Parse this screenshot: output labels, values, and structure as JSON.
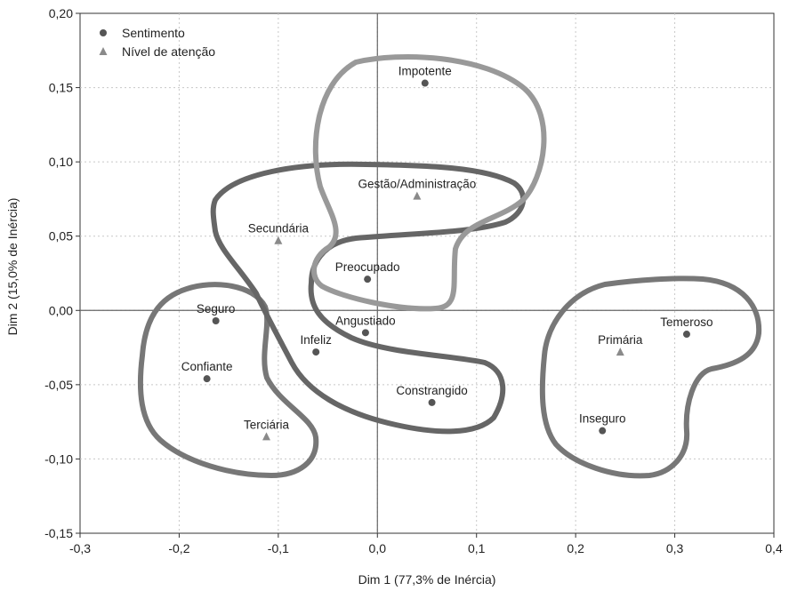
{
  "chart_data": {
    "type": "scatter",
    "xlabel": "Dim 1 (77,3% de Inércia)",
    "ylabel": "Dim 2 (15,0% de Inércia)",
    "xlim": [
      -0.3,
      0.4
    ],
    "ylim": [
      -0.15,
      0.2
    ],
    "x_ticks": [
      "-0,3",
      "-0,2",
      "-0,1",
      "0,0",
      "0,1",
      "0,2",
      "0,3",
      "0,4"
    ],
    "y_ticks": [
      "0,20",
      "0,15",
      "0,10",
      "0,05",
      "0,00",
      "-0,05",
      "-0,10",
      "-0,15"
    ],
    "grid": true,
    "legend_position": "top-left",
    "series": [
      {
        "name": "Sentimento",
        "marker": "circle",
        "color": "#555555",
        "points": [
          {
            "label": "Impotente",
            "x": 0.048,
            "y": 0.153
          },
          {
            "label": "Preocupado",
            "x": -0.01,
            "y": 0.021
          },
          {
            "label": "Seguro",
            "x": -0.163,
            "y": -0.007
          },
          {
            "label": "Angustiado",
            "x": -0.012,
            "y": -0.015
          },
          {
            "label": "Infeliz",
            "x": -0.062,
            "y": -0.028
          },
          {
            "label": "Confiante",
            "x": -0.172,
            "y": -0.046
          },
          {
            "label": "Constrangido",
            "x": 0.055,
            "y": -0.062
          },
          {
            "label": "Temeroso",
            "x": 0.312,
            "y": -0.016
          },
          {
            "label": "Inseguro",
            "x": 0.227,
            "y": -0.081
          }
        ]
      },
      {
        "name": "Nível de atenção",
        "marker": "triangle",
        "color": "#8a8a8a",
        "points": [
          {
            "label": "Gestão/Administração",
            "x": 0.04,
            "y": 0.077
          },
          {
            "label": "Secundária",
            "x": -0.1,
            "y": 0.047
          },
          {
            "label": "Primária",
            "x": 0.245,
            "y": -0.028
          },
          {
            "label": "Terciária",
            "x": -0.112,
            "y": -0.085
          }
        ]
      }
    ]
  }
}
